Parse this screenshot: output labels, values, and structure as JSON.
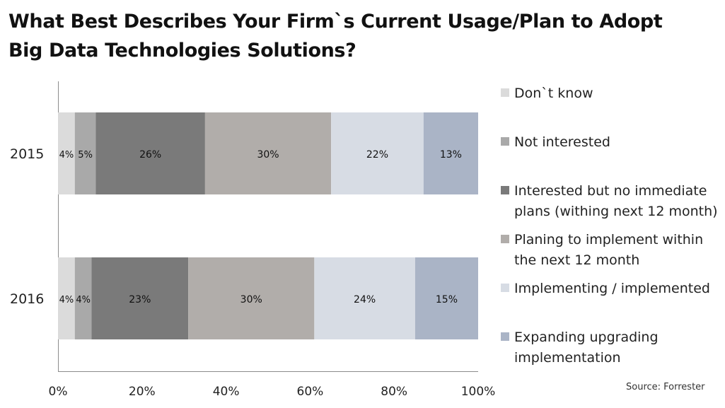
{
  "title_lines": [
    "What Best Describes Your Firm`s Current Usage/Plan to Adopt",
    "Big Data Technologies Solutions?"
  ],
  "source": "Source: Forrester",
  "colors": [
    "#dbdbdb",
    "#a9a9a9",
    "#7a7a7a",
    "#b1adaa",
    "#d7dce4",
    "#aab4c6"
  ],
  "chart_data": {
    "type": "bar",
    "orientation": "horizontal",
    "stacked": "100%",
    "categories": [
      "2015",
      "2016"
    ],
    "series": [
      {
        "name": "Don`t know",
        "values": [
          4,
          4
        ]
      },
      {
        "name": "Not interested",
        "values": [
          5,
          4
        ]
      },
      {
        "name": "Interested but no immediate plans (withing next 12 month)",
        "values": [
          26,
          23
        ]
      },
      {
        "name": "Planing to implement within the next 12 month",
        "values": [
          30,
          30
        ]
      },
      {
        "name": "Implementing / implemented",
        "values": [
          22,
          24
        ]
      },
      {
        "name": "Expanding upgrading implementation",
        "values": [
          13,
          15
        ]
      }
    ],
    "xlim": [
      0,
      100
    ],
    "x_ticks": [
      "0%",
      "20%",
      "40%",
      "60%",
      "80%",
      "100%"
    ],
    "legend_position": "right",
    "grid": false
  }
}
